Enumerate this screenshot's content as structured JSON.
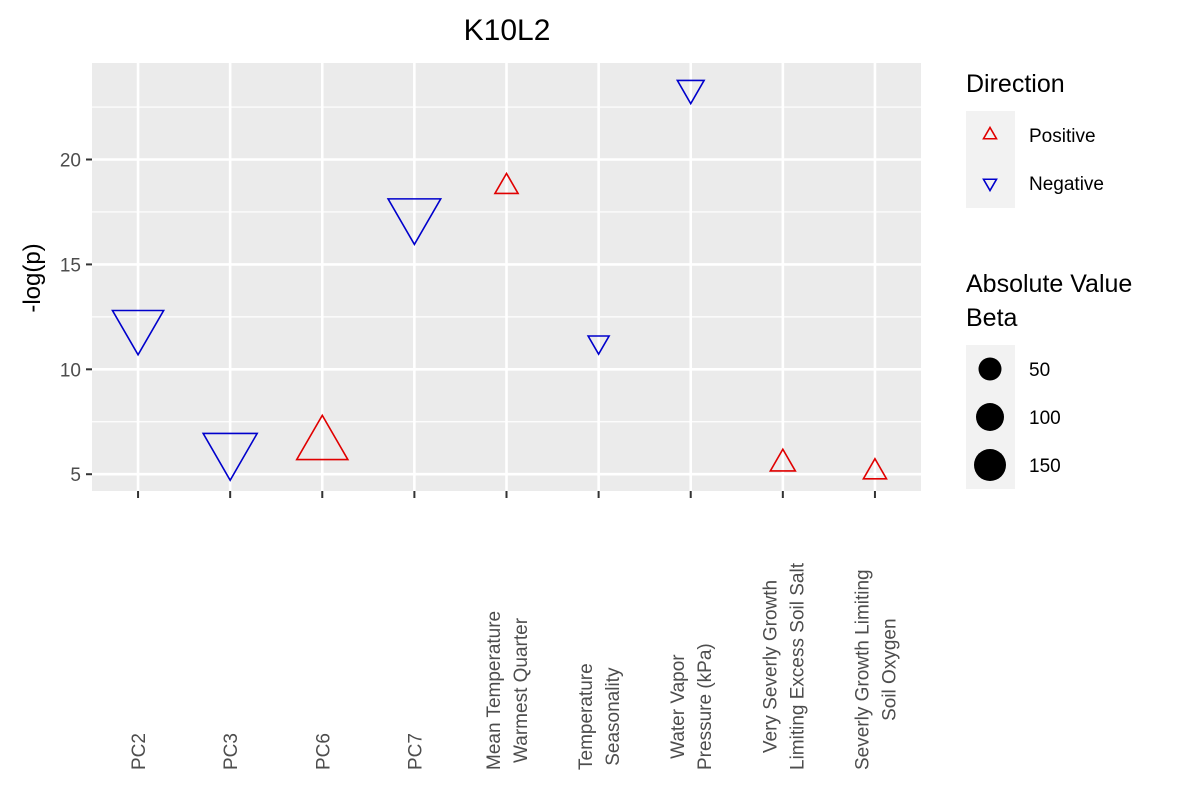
{
  "chart_data": {
    "type": "scatter",
    "title": "K10L2",
    "xlabel": "",
    "ylabel": "-log(p)",
    "ylim": [
      4.2,
      24.6
    ],
    "yticks": [
      5,
      10,
      15,
      20
    ],
    "grid": true,
    "legend_position": "right",
    "categories": [
      [
        "PC2"
      ],
      [
        "PC3"
      ],
      [
        "PC6"
      ],
      [
        "PC7"
      ],
      [
        "Mean Temperature",
        "Warmest Quarter"
      ],
      [
        "Temperature",
        "Seasonality"
      ],
      [
        "Water Vapor",
        "Pressure (kPa)"
      ],
      [
        "Very Severly Growth",
        "Limiting Excess Soil Salt"
      ],
      [
        "Severly Growth Limiting",
        "Soil Oxygen"
      ]
    ],
    "points": [
      {
        "category_index": 0,
        "y": 12.1,
        "direction": "Negative",
        "beta": 150
      },
      {
        "category_index": 1,
        "y": 6.2,
        "direction": "Negative",
        "beta": 170
      },
      {
        "category_index": 2,
        "y": 6.4,
        "direction": "Positive",
        "beta": 150
      },
      {
        "category_index": 3,
        "y": 17.4,
        "direction": "Negative",
        "beta": 160
      },
      {
        "category_index": 4,
        "y": 18.7,
        "direction": "Positive",
        "beta": 20
      },
      {
        "category_index": 5,
        "y": 11.3,
        "direction": "Negative",
        "beta": 15
      },
      {
        "category_index": 6,
        "y": 23.4,
        "direction": "Negative",
        "beta": 30
      },
      {
        "category_index": 7,
        "y": 5.5,
        "direction": "Positive",
        "beta": 25
      },
      {
        "category_index": 8,
        "y": 5.1,
        "direction": "Positive",
        "beta": 20
      }
    ],
    "legend": {
      "direction": {
        "title": "Direction",
        "entries": [
          {
            "label": "Positive",
            "color": "#e00000",
            "shape": "triangle-up"
          },
          {
            "label": "Negative",
            "color": "#0000cc",
            "shape": "triangle-down"
          }
        ]
      },
      "size": {
        "title": [
          "Absolute Value",
          " Beta"
        ],
        "entries": [
          {
            "label": "50",
            "value": 50
          },
          {
            "label": "100",
            "value": 100
          },
          {
            "label": "150",
            "value": 150
          }
        ]
      }
    },
    "colors": {
      "Positive": "#e00000",
      "Negative": "#0000cc",
      "panel": "#ebebeb",
      "grid": "#ffffff"
    }
  }
}
